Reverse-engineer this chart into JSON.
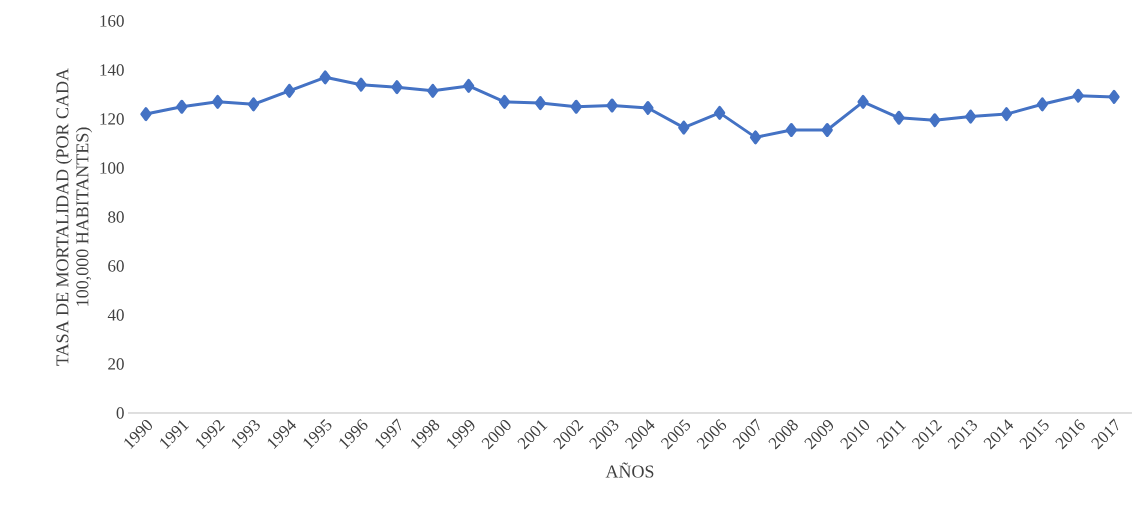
{
  "chart_data": {
    "type": "line",
    "xlabel": "AÑOS",
    "ylabel": "TASA DE MORTALIDAD (POR CADA 100,000 HABITANTES)",
    "categories": [
      "1990",
      "1991",
      "1992",
      "1993",
      "1994",
      "1995",
      "1996",
      "1997",
      "1998",
      "1999",
      "2000",
      "2001",
      "2002",
      "2003",
      "2004",
      "2005",
      "2006",
      "2007",
      "2008",
      "2009",
      "2010",
      "2011",
      "2012",
      "2013",
      "2014",
      "2015",
      "2016",
      "2017"
    ],
    "series": [
      {
        "color": "#4472c4",
        "values": [
          122,
          125,
          127,
          126,
          131.5,
          137,
          134,
          133,
          131.5,
          133.5,
          127,
          126.5,
          125,
          125.5,
          124.5,
          116.5,
          122.5,
          112.5,
          115.5,
          115.5,
          127,
          120.5,
          119.5,
          121,
          122,
          126,
          129.5,
          129
        ]
      }
    ],
    "ylim": [
      0,
      160
    ],
    "yticks": [
      0,
      20,
      40,
      60,
      80,
      100,
      120,
      140,
      160
    ],
    "marker": "diamond",
    "line_style": "solid"
  }
}
